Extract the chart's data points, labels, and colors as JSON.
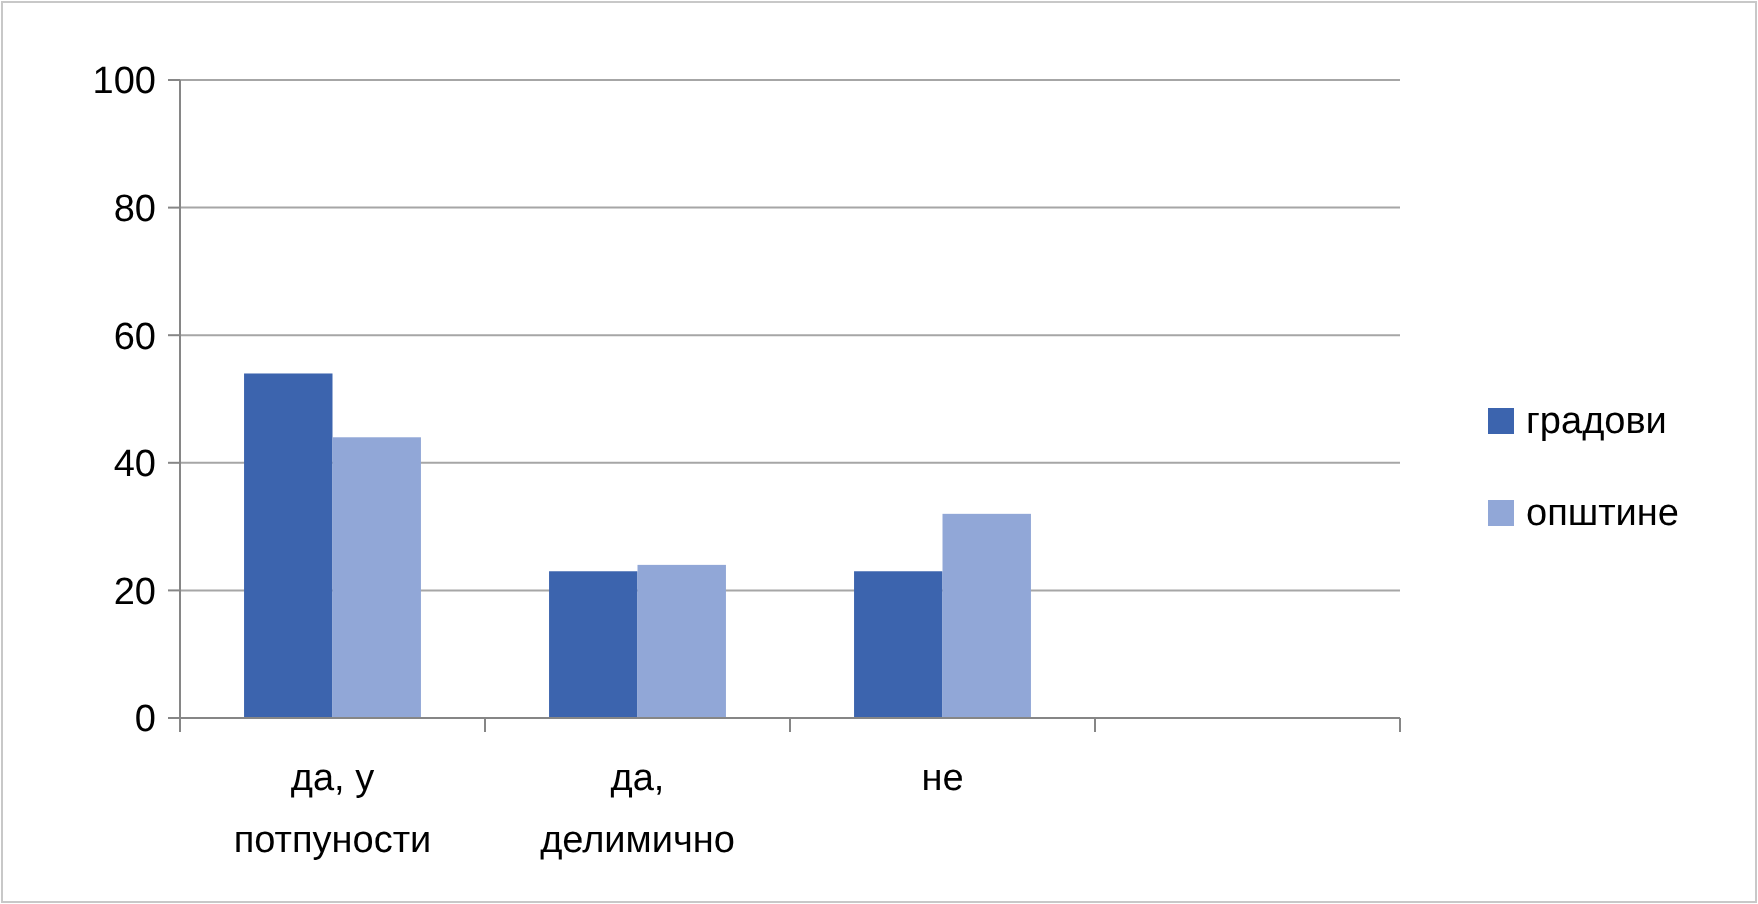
{
  "chart_data": {
    "type": "bar",
    "categories": [
      "да, у потпуности",
      "да, делимично",
      "не",
      null
    ],
    "series": [
      {
        "name": "градови",
        "color": "#3c64ae",
        "values": [
          54,
          23,
          23,
          null
        ]
      },
      {
        "name": "општине",
        "color": "#91a7d7",
        "values": [
          44,
          24,
          32,
          null
        ]
      }
    ],
    "ylim": [
      0,
      100
    ],
    "yticks": [
      0,
      20,
      40,
      60,
      80,
      100
    ],
    "grid": "y",
    "legend": "right"
  }
}
